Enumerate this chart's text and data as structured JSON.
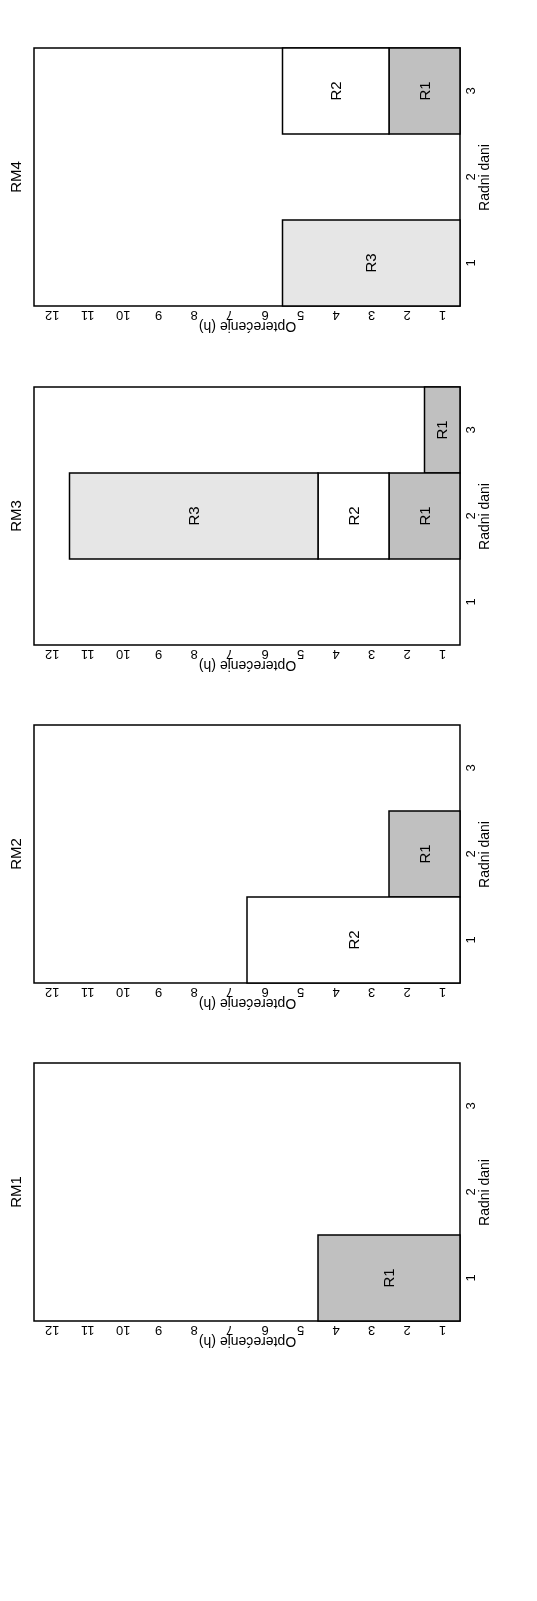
{
  "chart_data": [
    {
      "type": "bar",
      "orientation": "horizontal",
      "stacked": true,
      "title": "RM4",
      "xlabel": "Opterećenje (h)",
      "ylabel": "Radni dani",
      "categories": [
        "3",
        "2",
        "1"
      ],
      "xlim": [
        12,
        0
      ],
      "xticks": [
        {
          "value": 0.5,
          "label": "1"
        },
        {
          "value": 1.5,
          "label": "2"
        },
        {
          "value": 2.5,
          "label": "3"
        },
        {
          "value": 3.5,
          "label": "4"
        },
        {
          "value": 4.5,
          "label": "5"
        },
        {
          "value": 5.5,
          "label": "6"
        },
        {
          "value": 6.5,
          "label": "7"
        },
        {
          "value": 7.5,
          "label": "8"
        },
        {
          "value": 8.5,
          "label": "9"
        },
        {
          "value": 9.5,
          "label": "10"
        },
        {
          "value": 10.5,
          "label": "11"
        },
        {
          "value": 11.5,
          "label": "12"
        }
      ],
      "series": [
        {
          "name": "R1",
          "color": "#c0c0c0",
          "values": [
            2,
            null,
            null
          ]
        },
        {
          "name": "R2",
          "color": "#ffffff",
          "values": [
            3,
            null,
            null
          ]
        },
        {
          "name": "R3",
          "color": "#e6e6e6",
          "values": [
            null,
            null,
            5
          ]
        }
      ]
    },
    {
      "type": "bar",
      "orientation": "horizontal",
      "stacked": true,
      "title": "RM3",
      "xlabel": "Opterećenje (h)",
      "ylabel": "Radni dani",
      "categories": [
        "3",
        "2",
        "1"
      ],
      "xlim": [
        12,
        0
      ],
      "xticks": [
        {
          "value": 0.5,
          "label": "1"
        },
        {
          "value": 1.5,
          "label": "2"
        },
        {
          "value": 2.5,
          "label": "3"
        },
        {
          "value": 3.5,
          "label": "4"
        },
        {
          "value": 4.5,
          "label": "5"
        },
        {
          "value": 5.5,
          "label": "6"
        },
        {
          "value": 6.5,
          "label": "7"
        },
        {
          "value": 7.5,
          "label": "8"
        },
        {
          "value": 8.5,
          "label": "9"
        },
        {
          "value": 9.5,
          "label": "10"
        },
        {
          "value": 10.5,
          "label": "11"
        },
        {
          "value": 11.5,
          "label": "12"
        }
      ],
      "series": [
        {
          "name": "R1",
          "color": "#c0c0c0",
          "values": [
            1,
            2,
            null
          ]
        },
        {
          "name": "R2",
          "color": "#ffffff",
          "values": [
            null,
            2,
            null
          ]
        },
        {
          "name": "R3",
          "color": "#e6e6e6",
          "values": [
            null,
            7,
            null
          ]
        }
      ]
    },
    {
      "type": "bar",
      "orientation": "horizontal",
      "stacked": true,
      "title": "RM2",
      "xlabel": "Opterećenje (h)",
      "ylabel": "Radni dani",
      "categories": [
        "3",
        "2",
        "1"
      ],
      "xlim": [
        12,
        0
      ],
      "xticks": [
        {
          "value": 0.5,
          "label": "1"
        },
        {
          "value": 1.5,
          "label": "2"
        },
        {
          "value": 2.5,
          "label": "3"
        },
        {
          "value": 3.5,
          "label": "4"
        },
        {
          "value": 4.5,
          "label": "5"
        },
        {
          "value": 5.5,
          "label": "6"
        },
        {
          "value": 6.5,
          "label": "7"
        },
        {
          "value": 7.5,
          "label": "8"
        },
        {
          "value": 8.5,
          "label": "9"
        },
        {
          "value": 9.5,
          "label": "10"
        },
        {
          "value": 10.5,
          "label": "11"
        },
        {
          "value": 11.5,
          "label": "12"
        }
      ],
      "series": [
        {
          "name": "R1",
          "color": "#c0c0c0",
          "values": [
            null,
            2,
            null
          ]
        },
        {
          "name": "R2",
          "color": "#ffffff",
          "values": [
            null,
            null,
            6
          ]
        }
      ]
    },
    {
      "type": "bar",
      "orientation": "horizontal",
      "stacked": true,
      "title": "RM1",
      "xlabel": "Opterećenje (h)",
      "ylabel": "Radni dani",
      "categories": [
        "3",
        "2",
        "1"
      ],
      "xlim": [
        12,
        0
      ],
      "xticks": [
        {
          "value": 0.5,
          "label": "1"
        },
        {
          "value": 1.5,
          "label": "2"
        },
        {
          "value": 2.5,
          "label": "3"
        },
        {
          "value": 3.5,
          "label": "4"
        },
        {
          "value": 4.5,
          "label": "5"
        },
        {
          "value": 5.5,
          "label": "6"
        },
        {
          "value": 6.5,
          "label": "7"
        },
        {
          "value": 7.5,
          "label": "8"
        },
        {
          "value": 8.5,
          "label": "9"
        },
        {
          "value": 9.5,
          "label": "10"
        },
        {
          "value": 10.5,
          "label": "11"
        },
        {
          "value": 11.5,
          "label": "12"
        }
      ],
      "series": [
        {
          "name": "R1",
          "color": "#c0c0c0",
          "values": [
            null,
            null,
            4
          ]
        }
      ]
    }
  ]
}
